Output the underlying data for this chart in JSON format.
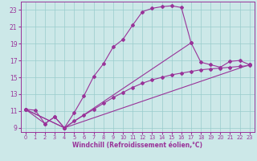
{
  "xlabel": "Windchill (Refroidissement éolien,°C)",
  "bg_color": "#cce8e8",
  "grid_color": "#99cccc",
  "line_color": "#993399",
  "xlim": [
    -0.5,
    23.5
  ],
  "ylim": [
    8.5,
    24.0
  ],
  "xticks": [
    0,
    1,
    2,
    3,
    4,
    5,
    6,
    7,
    8,
    9,
    10,
    11,
    12,
    13,
    14,
    15,
    16,
    17,
    18,
    19,
    20,
    21,
    22,
    23
  ],
  "yticks": [
    9,
    11,
    13,
    15,
    17,
    19,
    21,
    23
  ],
  "curve1_x": [
    0,
    1,
    2,
    3,
    4,
    5,
    6,
    7,
    8,
    9,
    10,
    11,
    12,
    13,
    14,
    15,
    16,
    17
  ],
  "curve1_y": [
    11.2,
    11.1,
    9.5,
    10.3,
    9.0,
    10.8,
    12.8,
    15.1,
    16.6,
    18.6,
    19.5,
    21.2,
    22.8,
    23.2,
    23.4,
    23.5,
    23.3,
    19.1
  ],
  "curve2_x": [
    0,
    2,
    3,
    4,
    17,
    18,
    19,
    20,
    21,
    22,
    23
  ],
  "curve2_y": [
    11.2,
    9.5,
    10.3,
    9.0,
    19.1,
    16.8,
    16.5,
    16.2,
    16.9,
    17.0,
    16.5
  ],
  "curve3_x": [
    0,
    4,
    5,
    6,
    7,
    8,
    9,
    10,
    11,
    12,
    13,
    14,
    15,
    16,
    17,
    18,
    19,
    20,
    21,
    22,
    23
  ],
  "curve3_y": [
    11.2,
    9.0,
    9.8,
    10.5,
    11.2,
    11.9,
    12.6,
    13.2,
    13.8,
    14.3,
    14.7,
    15.0,
    15.3,
    15.5,
    15.7,
    15.9,
    16.0,
    16.1,
    16.2,
    16.3,
    16.4
  ],
  "curve4_x": [
    0,
    4,
    23
  ],
  "curve4_y": [
    11.2,
    9.0,
    16.5
  ],
  "marker": "D",
  "marker_size": 2.0,
  "lw": 0.8
}
